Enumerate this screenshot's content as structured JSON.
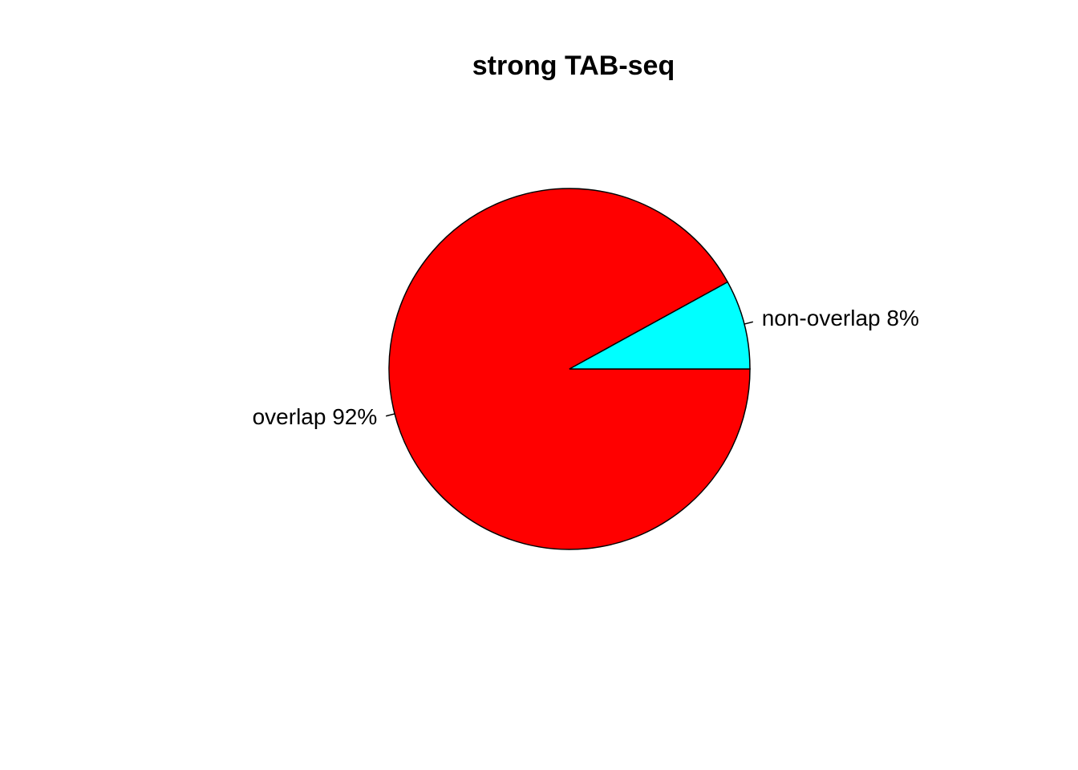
{
  "chart_data": {
    "type": "pie",
    "title": "strong TAB-seq",
    "slices": [
      {
        "label": "overlap 92%",
        "category": "overlap",
        "value": 92,
        "color": "#FF0000"
      },
      {
        "label": "non-overlap 8%",
        "category": "non-overlap",
        "value": 8,
        "color": "#00FFFF"
      }
    ],
    "start_angle_deg": 0,
    "direction": "clockwise",
    "border_color": "#000000",
    "legend": "none"
  }
}
